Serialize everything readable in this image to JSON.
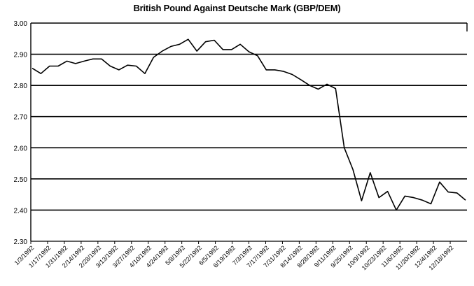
{
  "chart_data": {
    "type": "line",
    "title": "British Pound Against Deutsche Mark (GBP/DEM)",
    "xlabel": "",
    "ylabel": "",
    "ylim": [
      2.3,
      3.0
    ],
    "y_ticks": [
      "3.00",
      "2.90",
      "2.80",
      "2.70",
      "2.60",
      "2.50",
      "2.40",
      "2.30"
    ],
    "x_tick_labels": [
      "1/3/1992",
      "1/17/1992",
      "1/31/1992",
      "2/14/1992",
      "2/28/1992",
      "3/13/1992",
      "3/27/1992",
      "4/10/1992",
      "4/24/1992",
      "5/8/1992",
      "5/22/1992",
      "6/5/1992",
      "6/19/1992",
      "7/3/1992",
      "7/17/1992",
      "7/31/1992",
      "8/14/1992",
      "8/28/1992",
      "9/11/1992",
      "9/25/1992",
      "10/9/1992",
      "10/23/1992",
      "11/6/1992",
      "11/20/1992",
      "12/4/1992",
      "12/18/1992"
    ],
    "grid": "horizontal",
    "legend": "none",
    "series_color": "#000000",
    "values": [
      2.855,
      2.838,
      2.862,
      2.862,
      2.878,
      2.87,
      2.878,
      2.885,
      2.885,
      2.862,
      2.85,
      2.865,
      2.862,
      2.838,
      2.89,
      2.91,
      2.925,
      2.932,
      2.948,
      2.91,
      2.94,
      2.945,
      2.915,
      2.915,
      2.932,
      2.908,
      2.895,
      2.85,
      2.85,
      2.845,
      2.835,
      2.818,
      2.8,
      2.788,
      2.804,
      2.79,
      2.6,
      2.53,
      2.43,
      2.52,
      2.44,
      2.46,
      2.4,
      2.445,
      2.44,
      2.432,
      2.42,
      2.49,
      2.458,
      2.455,
      2.432
    ]
  }
}
